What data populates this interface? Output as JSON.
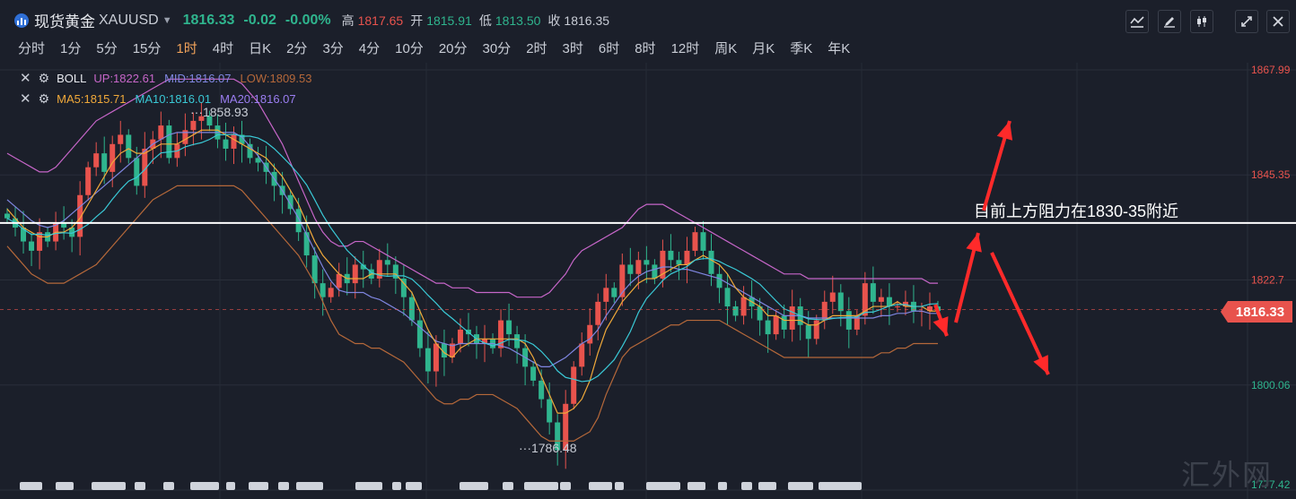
{
  "header": {
    "name": "现货黄金",
    "code": "XAUUSD",
    "price": "1816.33",
    "change": "-0.02",
    "change_pct": "-0.00%",
    "high_label": "高",
    "high": "1817.65",
    "open_label": "开",
    "open": "1815.91",
    "low_label": "低",
    "low": "1813.50",
    "close_label": "收",
    "close": "1816.35"
  },
  "periods": [
    "分时",
    "1分",
    "5分",
    "15分",
    "1时",
    "4时",
    "日K",
    "2分",
    "3分",
    "4分",
    "10分",
    "20分",
    "30分",
    "2时",
    "3时",
    "6时",
    "8时",
    "12时",
    "周K",
    "月K",
    "季K",
    "年K"
  ],
  "active_period": "1时",
  "toolbar_icons": [
    "indicator-icon",
    "draw-icon",
    "candle-style-icon",
    "fullscreen-icon",
    "close-icon"
  ],
  "indicators": {
    "boll": {
      "name": "BOLL",
      "up": "UP:1822.61",
      "mid": "MID:1816.07",
      "low": "LOW:1809.53"
    },
    "ma": {
      "ma5": "MA5:1815.71",
      "ma10": "MA10:1816.01",
      "ma20": "MA20:1816.07"
    }
  },
  "colors": {
    "up": "#e8534d",
    "down": "#2fb58e",
    "boll_up": "#c766c9",
    "boll_mid": "#7f86e0",
    "boll_low": "#b5683a",
    "ma5": "#f0a93a",
    "ma10": "#3ac9d6",
    "ma20": "#9b7ef2"
  },
  "last_price_tag": "1816.33",
  "watermark": "汇外网",
  "chart_data": {
    "type": "candlestick",
    "y_ticks": [
      "1867.99",
      "1845.35",
      "1822.7",
      "1800.06",
      "1777.42"
    ],
    "ylim": [
      1777.42,
      1867.99
    ],
    "annotations": {
      "max_label": "1858.93",
      "min_label": "1786.48",
      "resistance_text": "目前上方阻力在1830-35附近",
      "resistance_level": 1835
    },
    "close": [
      1836,
      1834,
      1831,
      1829,
      1833,
      1831,
      1835,
      1834,
      1832,
      1841,
      1847,
      1850,
      1846,
      1852,
      1854,
      1849,
      1843,
      1851,
      1853,
      1856,
      1849,
      1852,
      1855,
      1857,
      1858,
      1856,
      1853,
      1851,
      1854,
      1852,
      1849,
      1848,
      1846,
      1843,
      1841,
      1838,
      1833,
      1828,
      1822,
      1819,
      1821,
      1824,
      1822,
      1826,
      1825,
      1823,
      1827,
      1826,
      1823,
      1819,
      1814,
      1808,
      1803,
      1809,
      1806,
      1809,
      1812,
      1811,
      1809,
      1810,
      1808,
      1814,
      1811,
      1808,
      1804,
      1801,
      1797,
      1792,
      1786,
      1796,
      1804,
      1809,
      1813,
      1818,
      1821,
      1819,
      1826,
      1824,
      1827,
      1826,
      1823,
      1829,
      1827,
      1826,
      1829,
      1833,
      1829,
      1824,
      1821,
      1817,
      1815,
      1819,
      1817,
      1814,
      1811,
      1815,
      1812,
      1817,
      1813,
      1810,
      1814,
      1818,
      1820,
      1816,
      1812,
      1815,
      1822,
      1818,
      1819,
      1817,
      1817,
      1818,
      1816,
      1816,
      1817,
      1816
    ],
    "ma5": [
      1838,
      1836,
      1834,
      1833,
      1832,
      1832,
      1833,
      1833,
      1834,
      1836,
      1839,
      1842,
      1845,
      1848,
      1850,
      1851,
      1850,
      1850,
      1851,
      1852,
      1852,
      1852,
      1853,
      1854,
      1855,
      1855,
      1855,
      1854,
      1853,
      1852,
      1851,
      1850,
      1849,
      1847,
      1845,
      1842,
      1839,
      1835,
      1831,
      1828,
      1826,
      1824,
      1823,
      1823,
      1823,
      1824,
      1824,
      1824,
      1824,
      1822,
      1820,
      1816,
      1812,
      1809,
      1807,
      1806,
      1808,
      1809,
      1810,
      1810,
      1810,
      1810,
      1810,
      1810,
      1809,
      1806,
      1802,
      1798,
      1794,
      1794,
      1795,
      1797,
      1801,
      1807,
      1812,
      1815,
      1818,
      1820,
      1822,
      1823,
      1823,
      1824,
      1825,
      1826,
      1826,
      1827,
      1828,
      1827,
      1826,
      1824,
      1821,
      1819,
      1818,
      1817,
      1815,
      1815,
      1814,
      1814,
      1814,
      1813,
      1813,
      1814,
      1815,
      1815,
      1815,
      1815,
      1816,
      1817,
      1817,
      1817,
      1818,
      1817,
      1817,
      1817,
      1816,
      1816
    ],
    "boll_up": [
      1850,
      1849,
      1848,
      1847,
      1846,
      1846,
      1847,
      1849,
      1851,
      1853,
      1855,
      1857,
      1858,
      1859,
      1860,
      1861,
      1862,
      1863,
      1864,
      1865,
      1866,
      1866,
      1866,
      1866,
      1866,
      1866,
      1866,
      1866,
      1866,
      1865,
      1863,
      1861,
      1858,
      1855,
      1852,
      1848,
      1844,
      1840,
      1836,
      1833,
      1831,
      1830,
      1830,
      1831,
      1831,
      1830,
      1829,
      1828,
      1827,
      1826,
      1825,
      1824,
      1823,
      1822,
      1822,
      1821,
      1821,
      1821,
      1820,
      1820,
      1820,
      1820,
      1820,
      1819,
      1819,
      1819,
      1819,
      1820,
      1822,
      1824,
      1827,
      1829,
      1830,
      1831,
      1832,
      1833,
      1834,
      1836,
      1838,
      1839,
      1839,
      1839,
      1838,
      1837,
      1836,
      1835,
      1834,
      1833,
      1832,
      1831,
      1830,
      1829,
      1828,
      1827,
      1826,
      1825,
      1824,
      1824,
      1824,
      1823,
      1823,
      1823,
      1823,
      1823,
      1823,
      1823,
      1823,
      1823,
      1823,
      1823,
      1823,
      1823,
      1823,
      1823,
      1822,
      1822
    ],
    "boll_low": [
      1830,
      1828,
      1826,
      1824,
      1823,
      1822,
      1822,
      1822,
      1823,
      1824,
      1825,
      1826,
      1828,
      1830,
      1832,
      1834,
      1836,
      1838,
      1840,
      1841,
      1842,
      1843,
      1843,
      1843,
      1843,
      1843,
      1843,
      1843,
      1843,
      1842,
      1840,
      1838,
      1836,
      1834,
      1832,
      1830,
      1828,
      1825,
      1822,
      1818,
      1814,
      1811,
      1810,
      1809,
      1809,
      1808,
      1808,
      1807,
      1806,
      1805,
      1803,
      1801,
      1799,
      1797,
      1796,
      1796,
      1797,
      1797,
      1798,
      1798,
      1798,
      1797,
      1796,
      1795,
      1793,
      1791,
      1789,
      1788,
      1788,
      1788,
      1788,
      1789,
      1790,
      1793,
      1798,
      1802,
      1806,
      1808,
      1809,
      1810,
      1811,
      1812,
      1813,
      1813,
      1814,
      1814,
      1814,
      1814,
      1814,
      1813,
      1812,
      1811,
      1810,
      1809,
      1808,
      1807,
      1806,
      1806,
      1806,
      1806,
      1806,
      1806,
      1806,
      1806,
      1806,
      1806,
      1806,
      1806,
      1807,
      1807,
      1808,
      1808,
      1809,
      1809,
      1809,
      1809
    ]
  }
}
